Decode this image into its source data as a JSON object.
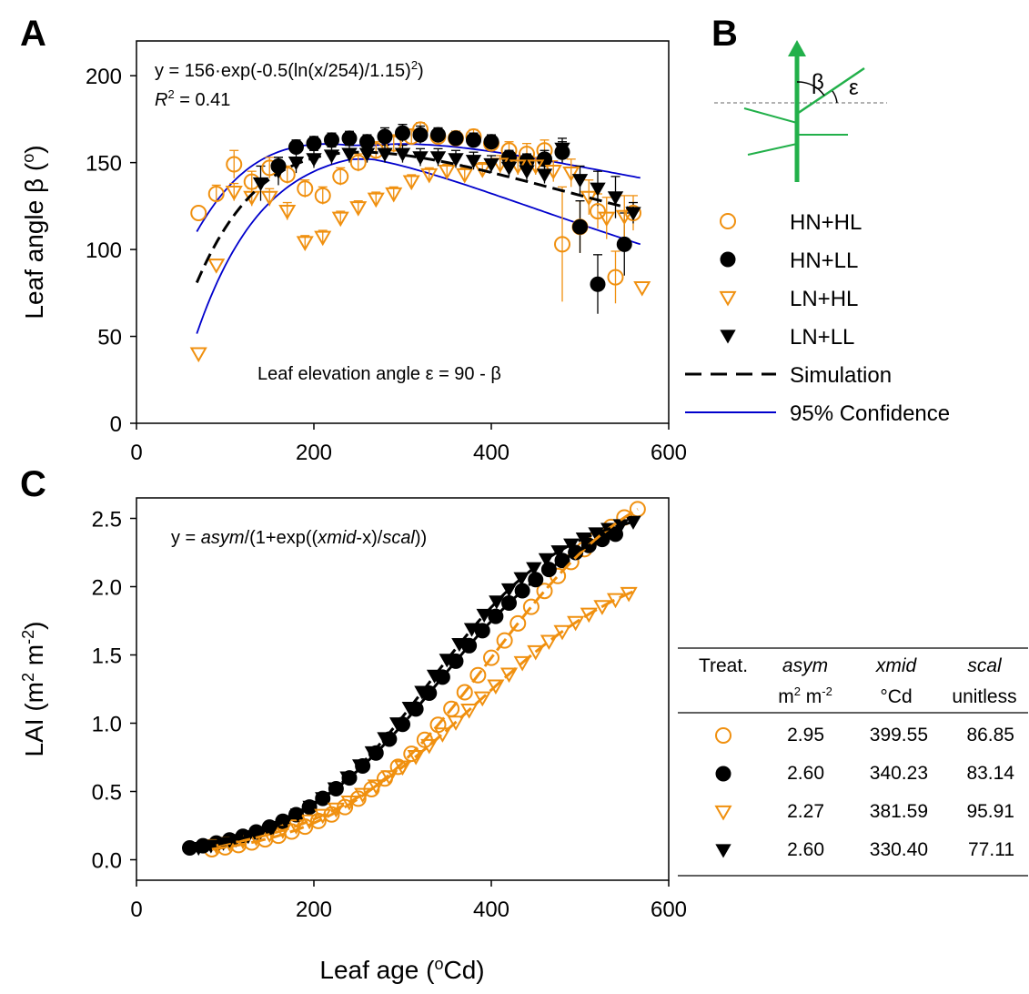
{
  "colors": {
    "orange": "#F0900F",
    "black": "#000000",
    "blue": "#0000CC",
    "green": "#22B04A"
  },
  "panels": {
    "a": "A",
    "b": "B",
    "c": "C"
  },
  "chart_data": [
    {
      "panel": "A",
      "type": "scatter",
      "equation": "y = 156·exp(-0.5(ln(x/254)/1.15)",
      "equation_sup": "2",
      "equation_end": ")",
      "r2_label": "R",
      "r2_sup": "2",
      "r2_value": " = 0.41",
      "note": "Leaf elevation angle ε = 90 - β",
      "ylabel_main": "Leaf angle β (",
      "ylabel_sup": "o",
      "ylabel_end": ")",
      "xlim": [
        0,
        600
      ],
      "ylim": [
        0,
        220
      ],
      "xticks": [
        0,
        200,
        400,
        600
      ],
      "yticks": [
        0,
        50,
        100,
        150,
        200
      ],
      "series": [
        {
          "name": "HN+HL",
          "marker": "circle-open",
          "color": "#F0900F",
          "points": [
            [
              70,
              121
            ],
            [
              90,
              132
            ],
            [
              110,
              149
            ],
            [
              130,
              139
            ],
            [
              150,
              147
            ],
            [
              170,
              143
            ],
            [
              190,
              135
            ],
            [
              210,
              131
            ],
            [
              230,
              142
            ],
            [
              250,
              150
            ],
            [
              270,
              157
            ],
            [
              290,
              161
            ],
            [
              310,
              165
            ],
            [
              320,
              169
            ],
            [
              340,
              165
            ],
            [
              360,
              164
            ],
            [
              380,
              165
            ],
            [
              400,
              161
            ],
            [
              420,
              157
            ],
            [
              440,
              155
            ],
            [
              460,
              157
            ],
            [
              480,
              103
            ],
            [
              500,
              113
            ],
            [
              520,
              122
            ],
            [
              540,
              84
            ],
            [
              560,
              121
            ]
          ],
          "err": [
            0,
            5,
            8,
            6,
            6,
            5,
            5,
            5,
            5,
            5,
            5,
            5,
            4,
            4,
            4,
            4,
            4,
            4,
            5,
            6,
            6,
            33,
            15,
            10,
            15,
            10
          ]
        },
        {
          "name": "HN+LL",
          "marker": "circle-filled",
          "color": "#000000",
          "points": [
            [
              160,
              148
            ],
            [
              180,
              159
            ],
            [
              200,
              161
            ],
            [
              220,
              163
            ],
            [
              240,
              164
            ],
            [
              260,
              162
            ],
            [
              280,
              165
            ],
            [
              300,
              167
            ],
            [
              320,
              166
            ],
            [
              340,
              166
            ],
            [
              360,
              164
            ],
            [
              380,
              163
            ],
            [
              400,
              162
            ],
            [
              420,
              153
            ],
            [
              440,
              151
            ],
            [
              460,
              152
            ],
            [
              480,
              156
            ],
            [
              500,
              113
            ],
            [
              520,
              80
            ],
            [
              550,
              103
            ]
          ],
          "err": [
            5,
            4,
            4,
            4,
            4,
            4,
            5,
            5,
            5,
            4,
            4,
            4,
            4,
            4,
            4,
            5,
            6,
            15,
            17,
            18
          ]
        },
        {
          "name": "LN+HL",
          "marker": "triangle-open",
          "color": "#F0900F",
          "points": [
            [
              70,
              40
            ],
            [
              90,
              91
            ],
            [
              110,
              133
            ],
            [
              130,
              130
            ],
            [
              150,
              130
            ],
            [
              170,
              122
            ],
            [
              190,
              104
            ],
            [
              210,
              107
            ],
            [
              230,
              118
            ],
            [
              250,
              124
            ],
            [
              270,
              129
            ],
            [
              290,
              132
            ],
            [
              310,
              139
            ],
            [
              330,
              143
            ],
            [
              350,
              145
            ],
            [
              370,
              143
            ],
            [
              390,
              146
            ],
            [
              410,
              149
            ],
            [
              430,
              148
            ],
            [
              450,
              148
            ],
            [
              470,
              145
            ],
            [
              490,
              144
            ],
            [
              510,
              130
            ],
            [
              530,
              118
            ],
            [
              550,
              119
            ],
            [
              570,
              78
            ]
          ],
          "err": [
            0,
            0,
            5,
            5,
            5,
            5,
            4,
            4,
            4,
            4,
            4,
            4,
            4,
            4,
            4,
            4,
            4,
            5,
            5,
            5,
            6,
            8,
            10,
            12,
            12,
            0
          ]
        },
        {
          "name": "LN+LL",
          "marker": "triangle-filled",
          "color": "#000000",
          "points": [
            [
              140,
              138
            ],
            [
              160,
              145
            ],
            [
              180,
              150
            ],
            [
              200,
              152
            ],
            [
              220,
              154
            ],
            [
              240,
              155
            ],
            [
              260,
              155
            ],
            [
              280,
              155
            ],
            [
              300,
              155
            ],
            [
              320,
              153
            ],
            [
              340,
              153
            ],
            [
              360,
              152
            ],
            [
              380,
              151
            ],
            [
              400,
              149
            ],
            [
              420,
              147
            ],
            [
              440,
              145
            ],
            [
              460,
              143
            ],
            [
              480,
              158
            ],
            [
              500,
              140
            ],
            [
              520,
              135
            ],
            [
              540,
              130
            ],
            [
              560,
              121
            ]
          ],
          "err": [
            10,
            8,
            6,
            5,
            5,
            5,
            5,
            5,
            5,
            5,
            5,
            5,
            5,
            5,
            5,
            5,
            5,
            6,
            8,
            10,
            12,
            6
          ]
        }
      ],
      "fit": {
        "name": "Simulation",
        "a": 156,
        "x0": 254,
        "b": 1.15,
        "x_range": [
          68,
          570
        ]
      },
      "ci": {
        "name": "95% Confidence"
      }
    },
    {
      "panel": "C",
      "type": "scatter",
      "equation_pre": "y = ",
      "eq_asym": "asym",
      "eq_mid1": "/(1+exp((",
      "eq_xmid": "xmid",
      "eq_mid2": "-x)/",
      "eq_scal": "scal",
      "eq_end": "))",
      "ylabel_main": "LAI (m",
      "ylabel_sup1": "2",
      "ylabel_mid": " m",
      "ylabel_sup2": "-2",
      "ylabel_end": ")",
      "xlabel_main": "Leaf age (",
      "xlabel_sup": "o",
      "xlabel_end": "Cd)",
      "xlim": [
        0,
        600
      ],
      "ylim": [
        -0.15,
        2.65
      ],
      "xticks": [
        0,
        200,
        400,
        600
      ],
      "yticks": [
        "0.0",
        "0.5",
        "1.0",
        "1.5",
        "2.0",
        "2.5"
      ],
      "series": [
        {
          "name": "HN+HL",
          "marker": "circle-open",
          "color": "#F0900F",
          "asym": 2.95,
          "xmid": 399.55,
          "scal": 86.85,
          "x_range": [
            85,
            565
          ],
          "step": 15
        },
        {
          "name": "HN+LL",
          "marker": "circle-filled",
          "color": "#000000",
          "asym": 2.6,
          "xmid": 340.23,
          "scal": 83.14,
          "x_range": [
            60,
            545
          ],
          "step": 15
        },
        {
          "name": "LN+HL",
          "marker": "triangle-open",
          "color": "#F0900F",
          "asym": 2.27,
          "xmid": 381.59,
          "scal": 95.91,
          "x_range": [
            90,
            565
          ],
          "step": 15
        },
        {
          "name": "LN+LL",
          "marker": "triangle-filled",
          "color": "#000000",
          "asym": 2.6,
          "xmid": 330.4,
          "scal": 77.11,
          "x_range": [
            70,
            560
          ],
          "step": 14
        }
      ]
    }
  ],
  "legend": {
    "items": [
      "HN+HL",
      "HN+LL",
      "LN+HL",
      "LN+LL"
    ],
    "simulation": "Simulation",
    "confidence": "95% Confidence"
  },
  "diagram_b": {
    "beta": "β",
    "epsilon": "ε"
  },
  "param_table": {
    "headers": [
      "Treat.",
      "asym",
      "xmid",
      "scal"
    ],
    "units": [
      "",
      "m",
      "°Cd",
      "unitless"
    ],
    "unit_sup": "2",
    "unit_mid": " m",
    "unit_sup2": "-2",
    "rows": [
      {
        "marker": "circle-open",
        "asym": "2.95",
        "xmid": "399.55",
        "scal": "86.85"
      },
      {
        "marker": "circle-filled",
        "asym": "2.60",
        "xmid": "340.23",
        "scal": "83.14"
      },
      {
        "marker": "triangle-open",
        "asym": "2.27",
        "xmid": "381.59",
        "scal": "95.91"
      },
      {
        "marker": "triangle-filled",
        "asym": "2.60",
        "xmid": "330.40",
        "scal": "77.11"
      }
    ]
  }
}
